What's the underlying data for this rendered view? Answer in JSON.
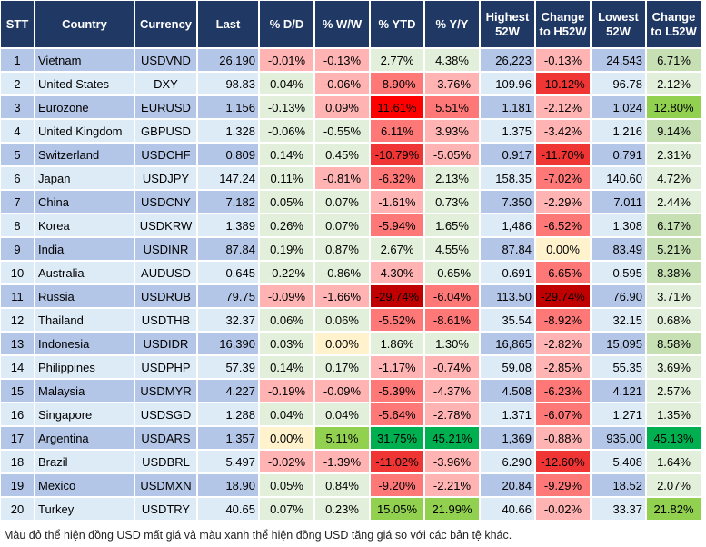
{
  "palette": {
    "band_odd": "#B4C6E7",
    "band_even": "#DDEBF7",
    "r1": "#FFB3B3",
    "r2": "#FF7878",
    "r3": "#F03535",
    "r4": "#FF0000",
    "r5": "#C00000",
    "g1": "#E2EFDA",
    "g2": "#C6E0B4",
    "g3": "#92D050",
    "g4": "#00B050",
    "y": "#FFF2CC",
    "header": "#203864"
  },
  "headers": [
    "STT",
    "Country",
    "Currency",
    "Last",
    "% D/D",
    "% W/W",
    "% YTD",
    "% Y/Y",
    "Highest 52W",
    "Change to H52W",
    "Lowest 52W",
    "Change to L52W"
  ],
  "rows": [
    {
      "stt": "1",
      "country": "Vietnam",
      "currency": "USDVND",
      "last": "26,190",
      "dd": "-0.01%",
      "ww": "-0.13%",
      "ytd": "2.77%",
      "yy": "4.38%",
      "h52": "26,223",
      "ch": "-0.13%",
      "l52": "24,543",
      "cl": "6.71%",
      "colors": [
        "r1",
        "r1",
        "g1",
        "g1",
        "r1",
        "g2"
      ]
    },
    {
      "stt": "2",
      "country": "United States",
      "currency": "DXY",
      "last": "98.83",
      "dd": "0.04%",
      "ww": "-0.06%",
      "ytd": "-8.90%",
      "yy": "-3.76%",
      "h52": "109.96",
      "ch": "-10.12%",
      "l52": "96.78",
      "cl": "2.12%",
      "colors": [
        "g1",
        "r1",
        "r2",
        "r1",
        "r3",
        "g1"
      ]
    },
    {
      "stt": "3",
      "country": "Eurozone",
      "currency": "EURUSD",
      "last": "1.156",
      "dd": "-0.13%",
      "ww": "0.09%",
      "ytd": "11.61%",
      "yy": "5.51%",
      "h52": "1.181",
      "ch": "-2.12%",
      "l52": "1.024",
      "cl": "12.80%",
      "colors": [
        "g1",
        "r1",
        "r4",
        "r2",
        "r1",
        "g3"
      ]
    },
    {
      "stt": "4",
      "country": "United Kingdom",
      "currency": "GBPUSD",
      "last": "1.328",
      "dd": "-0.06%",
      "ww": "-0.55%",
      "ytd": "6.11%",
      "yy": "3.93%",
      "h52": "1.375",
      "ch": "-3.42%",
      "l52": "1.216",
      "cl": "9.14%",
      "colors": [
        "g1",
        "g1",
        "r2",
        "r1",
        "r1",
        "g2"
      ]
    },
    {
      "stt": "5",
      "country": "Switzerland",
      "currency": "USDCHF",
      "last": "0.809",
      "dd": "0.14%",
      "ww": "0.45%",
      "ytd": "-10.79%",
      "yy": "-5.05%",
      "h52": "0.917",
      "ch": "-11.70%",
      "l52": "0.791",
      "cl": "2.31%",
      "colors": [
        "g1",
        "g1",
        "r3",
        "r1",
        "r3",
        "g1"
      ]
    },
    {
      "stt": "6",
      "country": "Japan",
      "currency": "USDJPY",
      "last": "147.24",
      "dd": "0.11%",
      "ww": "-0.81%",
      "ytd": "-6.32%",
      "yy": "2.13%",
      "h52": "158.35",
      "ch": "-7.02%",
      "l52": "140.60",
      "cl": "4.72%",
      "colors": [
        "g1",
        "r1",
        "r2",
        "g1",
        "r2",
        "g1"
      ]
    },
    {
      "stt": "7",
      "country": "China",
      "currency": "USDCNY",
      "last": "7.182",
      "dd": "0.05%",
      "ww": "0.07%",
      "ytd": "-1.61%",
      "yy": "0.73%",
      "h52": "7.350",
      "ch": "-2.29%",
      "l52": "7.011",
      "cl": "2.44%",
      "colors": [
        "g1",
        "g1",
        "r1",
        "g1",
        "r1",
        "g1"
      ]
    },
    {
      "stt": "8",
      "country": "Korea",
      "currency": "USDKRW",
      "last": "1,389",
      "dd": "0.26%",
      "ww": "0.07%",
      "ytd": "-5.94%",
      "yy": "1.65%",
      "h52": "1,486",
      "ch": "-6.52%",
      "l52": "1,308",
      "cl": "6.17%",
      "colors": [
        "g1",
        "g1",
        "r2",
        "g1",
        "r2",
        "g2"
      ]
    },
    {
      "stt": "9",
      "country": "India",
      "currency": "USDINR",
      "last": "87.84",
      "dd": "0.19%",
      "ww": "0.87%",
      "ytd": "2.67%",
      "yy": "4.55%",
      "h52": "87.84",
      "ch": "0.00%",
      "l52": "83.49",
      "cl": "5.21%",
      "colors": [
        "g1",
        "g1",
        "g1",
        "g1",
        "y",
        "g2"
      ]
    },
    {
      "stt": "10",
      "country": "Australia",
      "currency": "AUDUSD",
      "last": "0.645",
      "dd": "-0.22%",
      "ww": "-0.86%",
      "ytd": "4.30%",
      "yy": "-0.65%",
      "h52": "0.691",
      "ch": "-6.65%",
      "l52": "0.595",
      "cl": "8.38%",
      "colors": [
        "g1",
        "g1",
        "r1",
        "g1",
        "r2",
        "g2"
      ]
    },
    {
      "stt": "11",
      "country": "Russia",
      "currency": "USDRUB",
      "last": "79.75",
      "dd": "-0.09%",
      "ww": "-1.66%",
      "ytd": "-29.74%",
      "yy": "-6.04%",
      "h52": "113.50",
      "ch": "-29.74%",
      "l52": "76.90",
      "cl": "3.71%",
      "colors": [
        "r1",
        "r1",
        "r5",
        "r2",
        "r5",
        "g1"
      ]
    },
    {
      "stt": "12",
      "country": "Thailand",
      "currency": "USDTHB",
      "last": "32.37",
      "dd": "0.06%",
      "ww": "0.06%",
      "ytd": "-5.52%",
      "yy": "-8.61%",
      "h52": "35.54",
      "ch": "-8.92%",
      "l52": "32.15",
      "cl": "0.68%",
      "colors": [
        "g1",
        "g1",
        "r2",
        "r2",
        "r2",
        "g1"
      ]
    },
    {
      "stt": "13",
      "country": "Indonesia",
      "currency": "USDIDR",
      "last": "16,390",
      "dd": "0.03%",
      "ww": "0.00%",
      "ytd": "1.86%",
      "yy": "1.30%",
      "h52": "16,865",
      "ch": "-2.82%",
      "l52": "15,095",
      "cl": "8.58%",
      "colors": [
        "g1",
        "y",
        "g1",
        "g1",
        "r1",
        "g2"
      ]
    },
    {
      "stt": "14",
      "country": "Philippines",
      "currency": "USDPHP",
      "last": "57.39",
      "dd": "0.14%",
      "ww": "0.17%",
      "ytd": "-1.17%",
      "yy": "-0.74%",
      "h52": "59.08",
      "ch": "-2.85%",
      "l52": "55.35",
      "cl": "3.69%",
      "colors": [
        "g1",
        "g1",
        "r1",
        "r1",
        "r1",
        "g1"
      ]
    },
    {
      "stt": "15",
      "country": "Malaysia",
      "currency": "USDMYR",
      "last": "4.227",
      "dd": "-0.19%",
      "ww": "-0.09%",
      "ytd": "-5.39%",
      "yy": "-4.37%",
      "h52": "4.508",
      "ch": "-6.23%",
      "l52": "4.121",
      "cl": "2.57%",
      "colors": [
        "r1",
        "r1",
        "r2",
        "r1",
        "r2",
        "g1"
      ]
    },
    {
      "stt": "16",
      "country": "Singapore",
      "currency": "USDSGD",
      "last": "1.288",
      "dd": "0.04%",
      "ww": "0.04%",
      "ytd": "-5.64%",
      "yy": "-2.78%",
      "h52": "1.371",
      "ch": "-6.07%",
      "l52": "1.271",
      "cl": "1.35%",
      "colors": [
        "g1",
        "g1",
        "r2",
        "r1",
        "r2",
        "g1"
      ]
    },
    {
      "stt": "17",
      "country": "Argentina",
      "currency": "USDARS",
      "last": "1,357",
      "dd": "0.00%",
      "ww": "5.11%",
      "ytd": "31.75%",
      "yy": "45.21%",
      "h52": "1,369",
      "ch": "-0.88%",
      "l52": "935.00",
      "cl": "45.13%",
      "colors": [
        "y",
        "g3",
        "g4",
        "g4",
        "r1",
        "g4"
      ]
    },
    {
      "stt": "18",
      "country": "Brazil",
      "currency": "USDBRL",
      "last": "5.497",
      "dd": "-0.02%",
      "ww": "-1.39%",
      "ytd": "-11.02%",
      "yy": "-3.96%",
      "h52": "6.290",
      "ch": "-12.60%",
      "l52": "5.408",
      "cl": "1.64%",
      "colors": [
        "r1",
        "r1",
        "r3",
        "r1",
        "r3",
        "g1"
      ]
    },
    {
      "stt": "19",
      "country": "Mexico",
      "currency": "USDMXN",
      "last": "18.90",
      "dd": "0.05%",
      "ww": "0.84%",
      "ytd": "-9.20%",
      "yy": "-2.21%",
      "h52": "20.84",
      "ch": "-9.29%",
      "l52": "18.52",
      "cl": "2.07%",
      "colors": [
        "g1",
        "g1",
        "r2",
        "r1",
        "r2",
        "g1"
      ]
    },
    {
      "stt": "20",
      "country": "Turkey",
      "currency": "USDTRY",
      "last": "40.65",
      "dd": "0.07%",
      "ww": "0.23%",
      "ytd": "15.05%",
      "yy": "21.99%",
      "h52": "40.66",
      "ch": "-0.02%",
      "l52": "33.37",
      "cl": "21.82%",
      "colors": [
        "g1",
        "g1",
        "g3",
        "g3",
        "r1",
        "g3"
      ]
    }
  ],
  "footnote": "Màu đỏ thể hiện đồng USD mất giá và màu xanh thể hiện đồng USD tăng giá so với các bản tệ khác."
}
